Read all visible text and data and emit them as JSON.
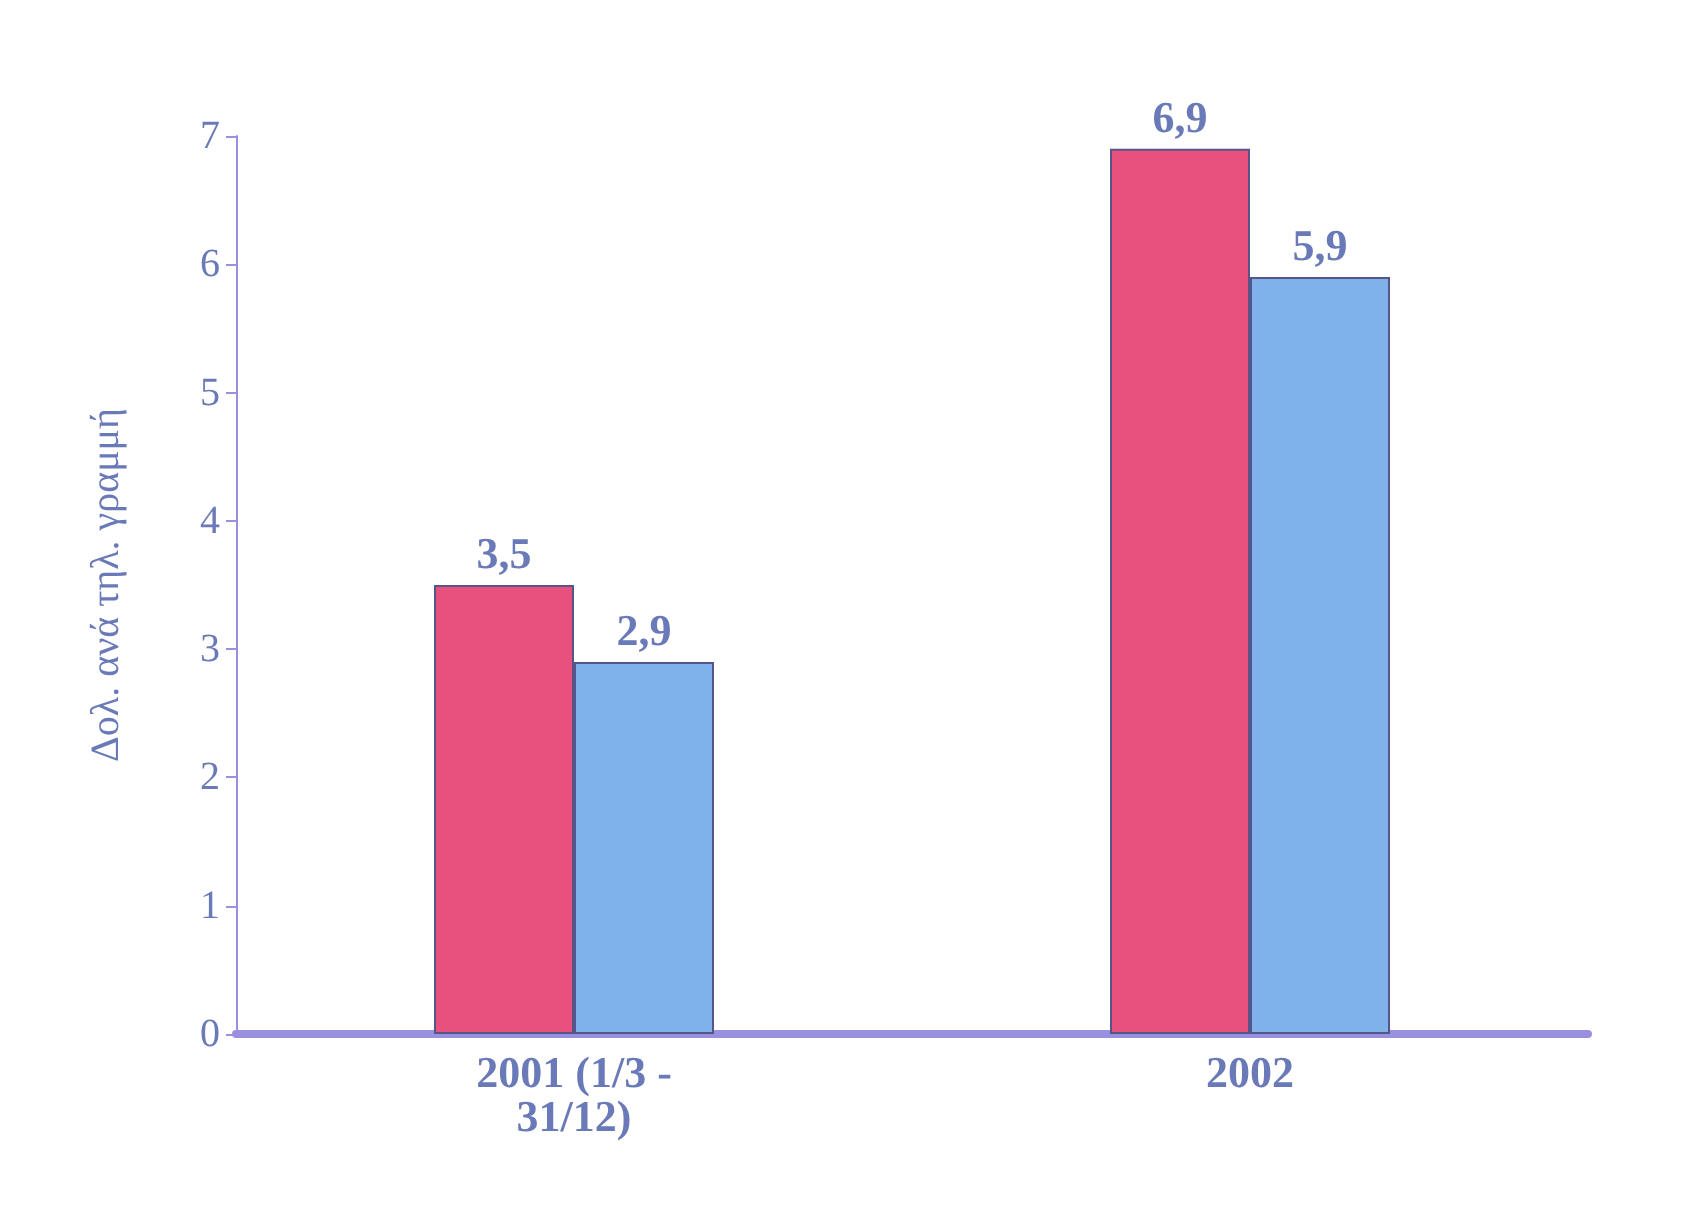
{
  "chart_data": {
    "type": "bar",
    "ylabel": "Δολ. ανά τηλ. γραμμή",
    "categories": [
      "2001 (1/3 -\n31/12)",
      "2002"
    ],
    "series": [
      {
        "color": "#e8507e",
        "values": [
          3.5,
          6.9
        ],
        "value_labels": [
          "3,5",
          "6,9"
        ]
      },
      {
        "color": "#7fb2ea",
        "values": [
          2.9,
          5.9
        ],
        "value_labels": [
          "2,9",
          "5,9"
        ]
      }
    ],
    "ylim": [
      0,
      7
    ],
    "yticks": [
      0,
      1,
      2,
      3,
      4,
      5,
      6,
      7
    ]
  }
}
